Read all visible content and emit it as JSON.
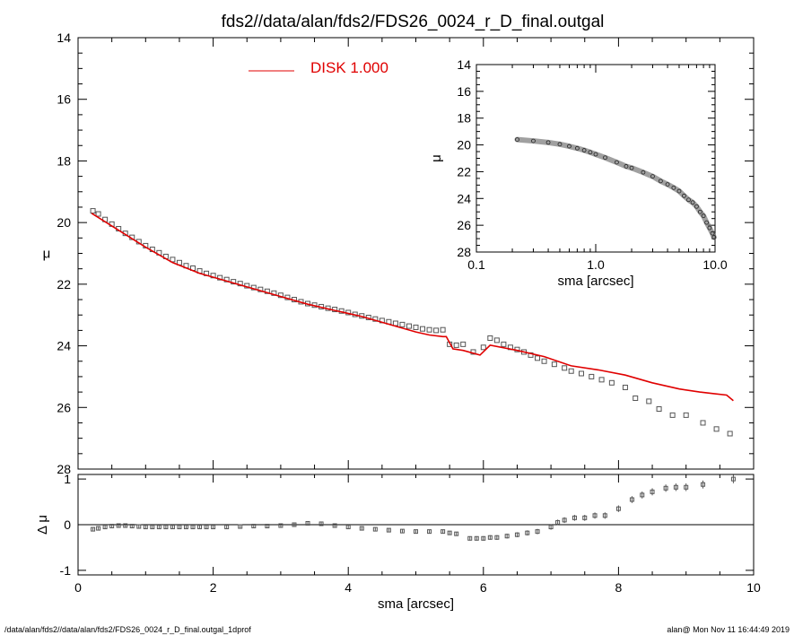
{
  "title": "fds2//data/alan/fds2/FDS26_0024_r_D_final.outgal",
  "footer": {
    "left": "/data/alan/fds2//data/alan/fds2/FDS26_0024_r_D_final.outgal_1dprof",
    "right": "alan@  Mon Nov 11 16:44:49 2019"
  },
  "colors": {
    "disk": "#e00000",
    "points": "#555555",
    "axes": "#000000"
  },
  "chart_data": [
    {
      "id": "main",
      "type": "scatter",
      "ylabel": "μ",
      "xlim": [
        0,
        10
      ],
      "ylim": [
        28,
        14
      ],
      "y_inverted": true,
      "xticks": [
        0,
        2,
        4,
        6,
        8,
        10
      ],
      "yticks": [
        14,
        16,
        18,
        20,
        22,
        24,
        26,
        28
      ],
      "legend": {
        "label": "DISK  1.000",
        "placement": "top-center"
      },
      "series": [
        {
          "type": "scatter",
          "points": [
            [
              0.22,
              19.62
            ],
            [
              0.3,
              19.72
            ],
            [
              0.4,
              19.9
            ],
            [
              0.5,
              20.05
            ],
            [
              0.6,
              20.2
            ],
            [
              0.7,
              20.35
            ],
            [
              0.8,
              20.48
            ],
            [
              0.9,
              20.62
            ],
            [
              1.0,
              20.75
            ],
            [
              1.1,
              20.87
            ],
            [
              1.2,
              20.98
            ],
            [
              1.3,
              21.1
            ],
            [
              1.4,
              21.2
            ],
            [
              1.5,
              21.3
            ],
            [
              1.6,
              21.4
            ],
            [
              1.7,
              21.48
            ],
            [
              1.8,
              21.57
            ],
            [
              1.9,
              21.65
            ],
            [
              2.0,
              21.72
            ],
            [
              2.1,
              21.79
            ],
            [
              2.2,
              21.85
            ],
            [
              2.3,
              21.92
            ],
            [
              2.4,
              21.98
            ],
            [
              2.5,
              22.05
            ],
            [
              2.6,
              22.11
            ],
            [
              2.7,
              22.17
            ],
            [
              2.8,
              22.23
            ],
            [
              2.9,
              22.29
            ],
            [
              3.0,
              22.36
            ],
            [
              3.1,
              22.43
            ],
            [
              3.2,
              22.5
            ],
            [
              3.3,
              22.57
            ],
            [
              3.4,
              22.63
            ],
            [
              3.5,
              22.68
            ],
            [
              3.6,
              22.73
            ],
            [
              3.7,
              22.78
            ],
            [
              3.8,
              22.82
            ],
            [
              3.9,
              22.87
            ],
            [
              4.0,
              22.92
            ],
            [
              4.1,
              22.98
            ],
            [
              4.2,
              23.03
            ],
            [
              4.3,
              23.08
            ],
            [
              4.4,
              23.13
            ],
            [
              4.5,
              23.18
            ],
            [
              4.6,
              23.22
            ],
            [
              4.7,
              23.27
            ],
            [
              4.8,
              23.31
            ],
            [
              4.9,
              23.36
            ],
            [
              5.0,
              23.4
            ],
            [
              5.1,
              23.45
            ],
            [
              5.2,
              23.48
            ],
            [
              5.3,
              23.5
            ],
            [
              5.4,
              23.48
            ],
            [
              5.5,
              23.95
            ],
            [
              5.6,
              23.98
            ],
            [
              5.7,
              23.95
            ],
            [
              5.85,
              24.2
            ],
            [
              6.0,
              24.05
            ],
            [
              6.1,
              23.75
            ],
            [
              6.2,
              23.82
            ],
            [
              6.3,
              23.95
            ],
            [
              6.4,
              24.05
            ],
            [
              6.5,
              24.12
            ],
            [
              6.6,
              24.2
            ],
            [
              6.7,
              24.3
            ],
            [
              6.8,
              24.4
            ],
            [
              6.9,
              24.5
            ],
            [
              7.05,
              24.6
            ],
            [
              7.2,
              24.72
            ],
            [
              7.3,
              24.82
            ],
            [
              7.45,
              24.9
            ],
            [
              7.6,
              25.0
            ],
            [
              7.75,
              25.1
            ],
            [
              7.9,
              25.2
            ],
            [
              8.1,
              25.35
            ],
            [
              8.25,
              25.7
            ],
            [
              8.45,
              25.8
            ],
            [
              8.6,
              26.05
            ],
            [
              8.8,
              26.25
            ],
            [
              9.0,
              26.25
            ],
            [
              9.25,
              26.5
            ],
            [
              9.45,
              26.7
            ],
            [
              9.65,
              26.85
            ]
          ]
        },
        {
          "name": "DISK  1.000",
          "type": "line",
          "color": "#e00000",
          "points": [
            [
              0.2,
              19.7
            ],
            [
              0.6,
              20.25
            ],
            [
              1.0,
              20.8
            ],
            [
              1.4,
              21.3
            ],
            [
              1.8,
              21.65
            ],
            [
              2.2,
              21.9
            ],
            [
              2.6,
              22.15
            ],
            [
              3.0,
              22.4
            ],
            [
              3.4,
              22.65
            ],
            [
              3.8,
              22.85
            ],
            [
              4.2,
              23.05
            ],
            [
              4.6,
              23.3
            ],
            [
              5.0,
              23.55
            ],
            [
              5.2,
              23.65
            ],
            [
              5.4,
              23.7
            ],
            [
              5.45,
              23.7
            ],
            [
              5.55,
              24.1
            ],
            [
              5.7,
              24.15
            ],
            [
              5.95,
              24.3
            ],
            [
              6.1,
              23.98
            ],
            [
              6.5,
              24.15
            ],
            [
              6.9,
              24.35
            ],
            [
              7.3,
              24.65
            ],
            [
              7.7,
              24.78
            ],
            [
              8.1,
              24.95
            ],
            [
              8.5,
              25.2
            ],
            [
              8.9,
              25.4
            ],
            [
              9.2,
              25.5
            ],
            [
              9.4,
              25.55
            ],
            [
              9.6,
              25.6
            ],
            [
              9.7,
              25.78
            ]
          ]
        }
      ]
    },
    {
      "id": "inset",
      "type": "scatter",
      "xscale": "log",
      "xlabel": "sma [arcsec]",
      "ylabel": "μ",
      "xlim": [
        0.1,
        10
      ],
      "ylim": [
        28,
        14
      ],
      "y_inverted": true,
      "xticks": [
        0.1,
        1.0,
        10.0
      ],
      "xtick_labels": [
        "0.1",
        "1.0",
        "10.0"
      ],
      "yticks": [
        14,
        16,
        18,
        20,
        22,
        24,
        26,
        28
      ],
      "series": [
        {
          "type": "scatter",
          "points": [
            [
              0.22,
              19.6
            ],
            [
              0.3,
              19.7
            ],
            [
              0.4,
              19.82
            ],
            [
              0.5,
              19.95
            ],
            [
              0.6,
              20.1
            ],
            [
              0.7,
              20.25
            ],
            [
              0.8,
              20.4
            ],
            [
              0.9,
              20.55
            ],
            [
              1.0,
              20.7
            ],
            [
              1.2,
              20.95
            ],
            [
              1.5,
              21.3
            ],
            [
              1.8,
              21.6
            ],
            [
              2.0,
              21.72
            ],
            [
              2.5,
              22.05
            ],
            [
              3.0,
              22.35
            ],
            [
              3.5,
              22.7
            ],
            [
              4.0,
              22.95
            ],
            [
              4.5,
              23.2
            ],
            [
              5.0,
              23.45
            ],
            [
              5.5,
              23.8
            ],
            [
              6.0,
              24.1
            ],
            [
              6.5,
              24.3
            ],
            [
              7.0,
              24.6
            ],
            [
              7.5,
              25.0
            ],
            [
              8.0,
              25.3
            ],
            [
              8.5,
              25.8
            ],
            [
              9.0,
              26.2
            ],
            [
              9.5,
              26.6
            ],
            [
              9.8,
              26.9
            ]
          ]
        }
      ]
    },
    {
      "id": "residual",
      "type": "scatter",
      "xlabel": "sma [arcsec]",
      "ylabel": "Δ μ",
      "xlim": [
        0,
        10
      ],
      "ylim": [
        -1.1,
        1.1
      ],
      "xticks": [
        0,
        2,
        4,
        6,
        8,
        10
      ],
      "yticks": [
        -1,
        0,
        1
      ],
      "series": [
        {
          "type": "scatter",
          "points": [
            [
              0.22,
              -0.1
            ],
            [
              0.3,
              -0.08
            ],
            [
              0.4,
              -0.05
            ],
            [
              0.5,
              -0.03
            ],
            [
              0.6,
              -0.02
            ],
            [
              0.7,
              -0.02
            ],
            [
              0.8,
              -0.03
            ],
            [
              0.9,
              -0.04
            ],
            [
              1.0,
              -0.05
            ],
            [
              1.1,
              -0.05
            ],
            [
              1.2,
              -0.05
            ],
            [
              1.3,
              -0.05
            ],
            [
              1.4,
              -0.05
            ],
            [
              1.5,
              -0.05
            ],
            [
              1.6,
              -0.05
            ],
            [
              1.7,
              -0.05
            ],
            [
              1.8,
              -0.05
            ],
            [
              1.9,
              -0.05
            ],
            [
              2.0,
              -0.05
            ],
            [
              2.2,
              -0.05
            ],
            [
              2.4,
              -0.04
            ],
            [
              2.6,
              -0.03
            ],
            [
              2.8,
              -0.03
            ],
            [
              3.0,
              -0.02
            ],
            [
              3.2,
              0.0
            ],
            [
              3.4,
              0.03
            ],
            [
              3.6,
              0.02
            ],
            [
              3.8,
              -0.02
            ],
            [
              4.0,
              -0.05
            ],
            [
              4.2,
              -0.08
            ],
            [
              4.4,
              -0.1
            ],
            [
              4.6,
              -0.12
            ],
            [
              4.8,
              -0.14
            ],
            [
              5.0,
              -0.15
            ],
            [
              5.2,
              -0.15
            ],
            [
              5.4,
              -0.15
            ],
            [
              5.5,
              -0.18
            ],
            [
              5.6,
              -0.2
            ],
            [
              5.8,
              -0.3
            ],
            [
              5.9,
              -0.3
            ],
            [
              6.0,
              -0.3
            ],
            [
              6.1,
              -0.28
            ],
            [
              6.2,
              -0.28
            ],
            [
              6.35,
              -0.25
            ],
            [
              6.5,
              -0.22
            ],
            [
              6.65,
              -0.18
            ],
            [
              6.8,
              -0.15
            ],
            [
              7.0,
              -0.05
            ],
            [
              7.1,
              0.05
            ],
            [
              7.2,
              0.1
            ],
            [
              7.35,
              0.15
            ],
            [
              7.5,
              0.15
            ],
            [
              7.65,
              0.2
            ],
            [
              7.8,
              0.2
            ],
            [
              8.0,
              0.35
            ],
            [
              8.2,
              0.55
            ],
            [
              8.35,
              0.65
            ],
            [
              8.5,
              0.72
            ],
            [
              8.7,
              0.8
            ],
            [
              8.85,
              0.82
            ],
            [
              9.0,
              0.82
            ],
            [
              9.25,
              0.88
            ],
            [
              9.7,
              1.0
            ]
          ]
        }
      ]
    }
  ]
}
